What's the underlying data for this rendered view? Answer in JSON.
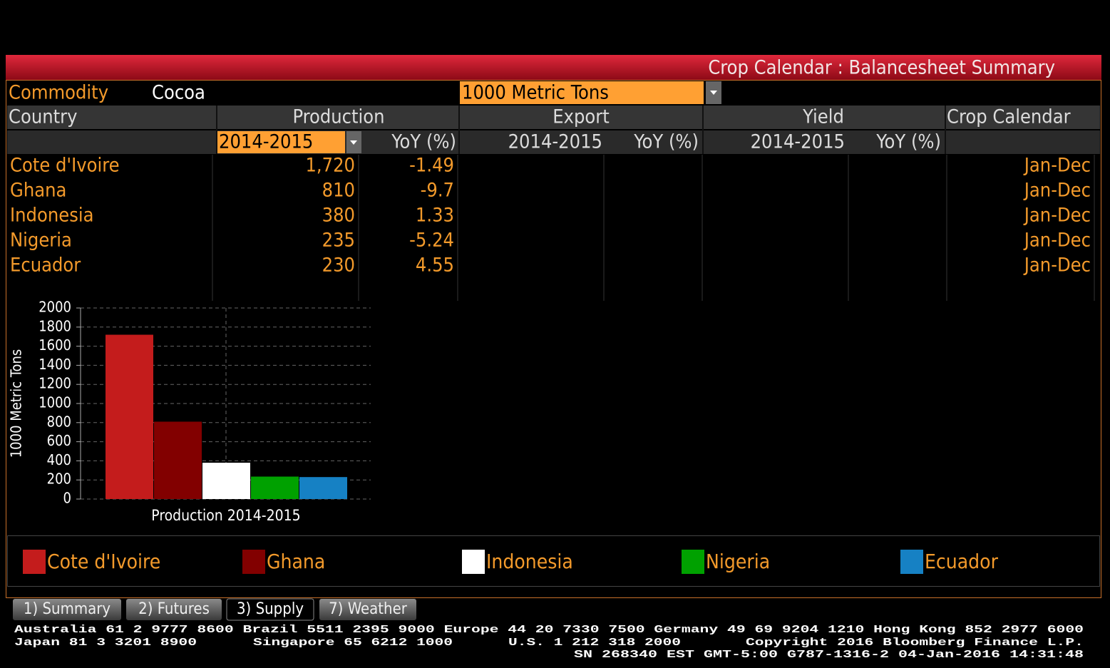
{
  "header": {
    "title": "Crop Calendar : Balancesheet Summary"
  },
  "commodity": {
    "label": "Commodity",
    "value": "Cocoa",
    "units": "1000 Metric Tons"
  },
  "table": {
    "columns": [
      "Country",
      "Production",
      "Export",
      "Yield",
      "Crop Calendar"
    ],
    "subcolumns": [
      "2014-2015",
      "YoY (%)",
      "2014-2015",
      "YoY (%)",
      "2014-2015",
      "YoY (%)"
    ],
    "rows": [
      [
        "Cote d'Ivoire",
        "1,720",
        "-1.49",
        "Jan-Dec"
      ],
      [
        "Ghana",
        "810",
        "-9.7",
        "Jan-Dec"
      ],
      [
        "Indonesia",
        "380",
        "1.33",
        "Jan-Dec"
      ],
      [
        "Nigeria",
        "235",
        "-5.24",
        "Jan-Dec"
      ],
      [
        "Ecuador",
        "230",
        "4.55",
        "Jan-Dec"
      ]
    ]
  },
  "chart_data": {
    "type": "bar",
    "y_label": "1000 Metric Tons",
    "x_label": "Production 2014-2015",
    "categories": [
      "Cote d'Ivoire",
      "Ghana",
      "Indonesia",
      "Nigeria",
      "Ecuador"
    ],
    "values": [
      1720,
      810,
      380,
      235,
      230
    ],
    "colors": [
      "#c41c1c",
      "#820000",
      "#ffffff",
      "#00a100",
      "#1681c4"
    ],
    "ylim": [
      0,
      2000
    ],
    "yticks": [
      0,
      200,
      400,
      600,
      800,
      1000,
      1200,
      1400,
      1600,
      1800,
      2000
    ],
    "grid": true
  },
  "tabs": [
    "1) Summary",
    "2) Futures",
    "3) Supply",
    "7) Weather"
  ],
  "footer": {
    "line1": "Australia 61 2 9777 8600 Brazil 5511 2395 9000 Europe 44 20 7330 7500 Germany 49 69 9204 1210 Hong Kong 852 2977 6000",
    "line2": [
      "Japan 81 3 3201 8900",
      "Singapore 65 6212 1000",
      "U.S. 1 212 318 2000",
      "Copyright 2016 Bloomberg Finance L.P."
    ],
    "line3": "SN 268340 EST  GMT-5:00 G787-1316-2 04-Jan-2016 14:31:48"
  }
}
